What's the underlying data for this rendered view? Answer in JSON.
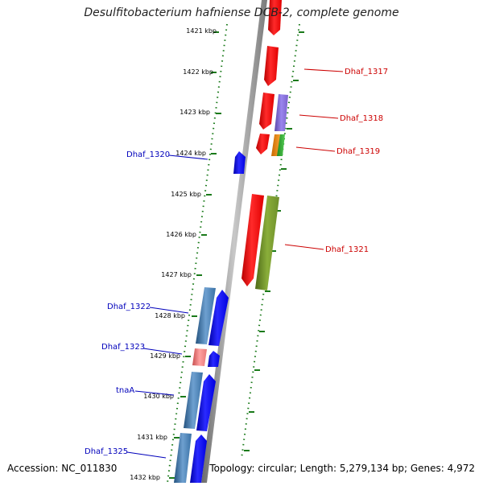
{
  "title": "Desulfitobacterium hafniense DCB-2, complete genome",
  "footer": {
    "accession_label": "Accession: ",
    "accession": "NC_011830",
    "topology_label": "Topology: ",
    "topology": "circular",
    "length_label": "; Length: ",
    "length": "5,279,134 bp",
    "genes_label": "; Genes: ",
    "genes": "4,972"
  },
  "ruler": {
    "ticks": [
      "1421 kbp",
      "1422 kbp",
      "1423 kbp",
      "1424 kbp",
      "1425 kbp",
      "1426 kbp",
      "1427 kbp",
      "1428 kbp",
      "1429 kbp",
      "1430 kbp",
      "1431 kbp",
      "1432 kbp"
    ]
  },
  "labels": {
    "Dhaf_1317": "Dhaf_1317",
    "Dhaf_1318": "Dhaf_1318",
    "Dhaf_1319": "Dhaf_1319",
    "Dhaf_1320": "Dhaf_1320",
    "Dhaf_1321": "Dhaf_1321",
    "Dhaf_1322": "Dhaf_1322",
    "Dhaf_1323": "Dhaf_1323",
    "tnaA": "tnaA",
    "Dhaf_1325": "Dhaf_1325"
  },
  "colors": {
    "forward_gene": "#e00000",
    "reverse_gene": "#0000e0",
    "forward_label": "#cc0000",
    "reverse_label": "#0000bb",
    "backbone": "#888888",
    "tick_dots": "#1a7a1a",
    "cds_purple": "#7a62cc",
    "cds_olive": "#6e8e2a",
    "cds_orange": "#f08a10",
    "cds_green": "#33aa33",
    "cds_steel": "#3a72a6",
    "cds_pink": "#e87878"
  }
}
